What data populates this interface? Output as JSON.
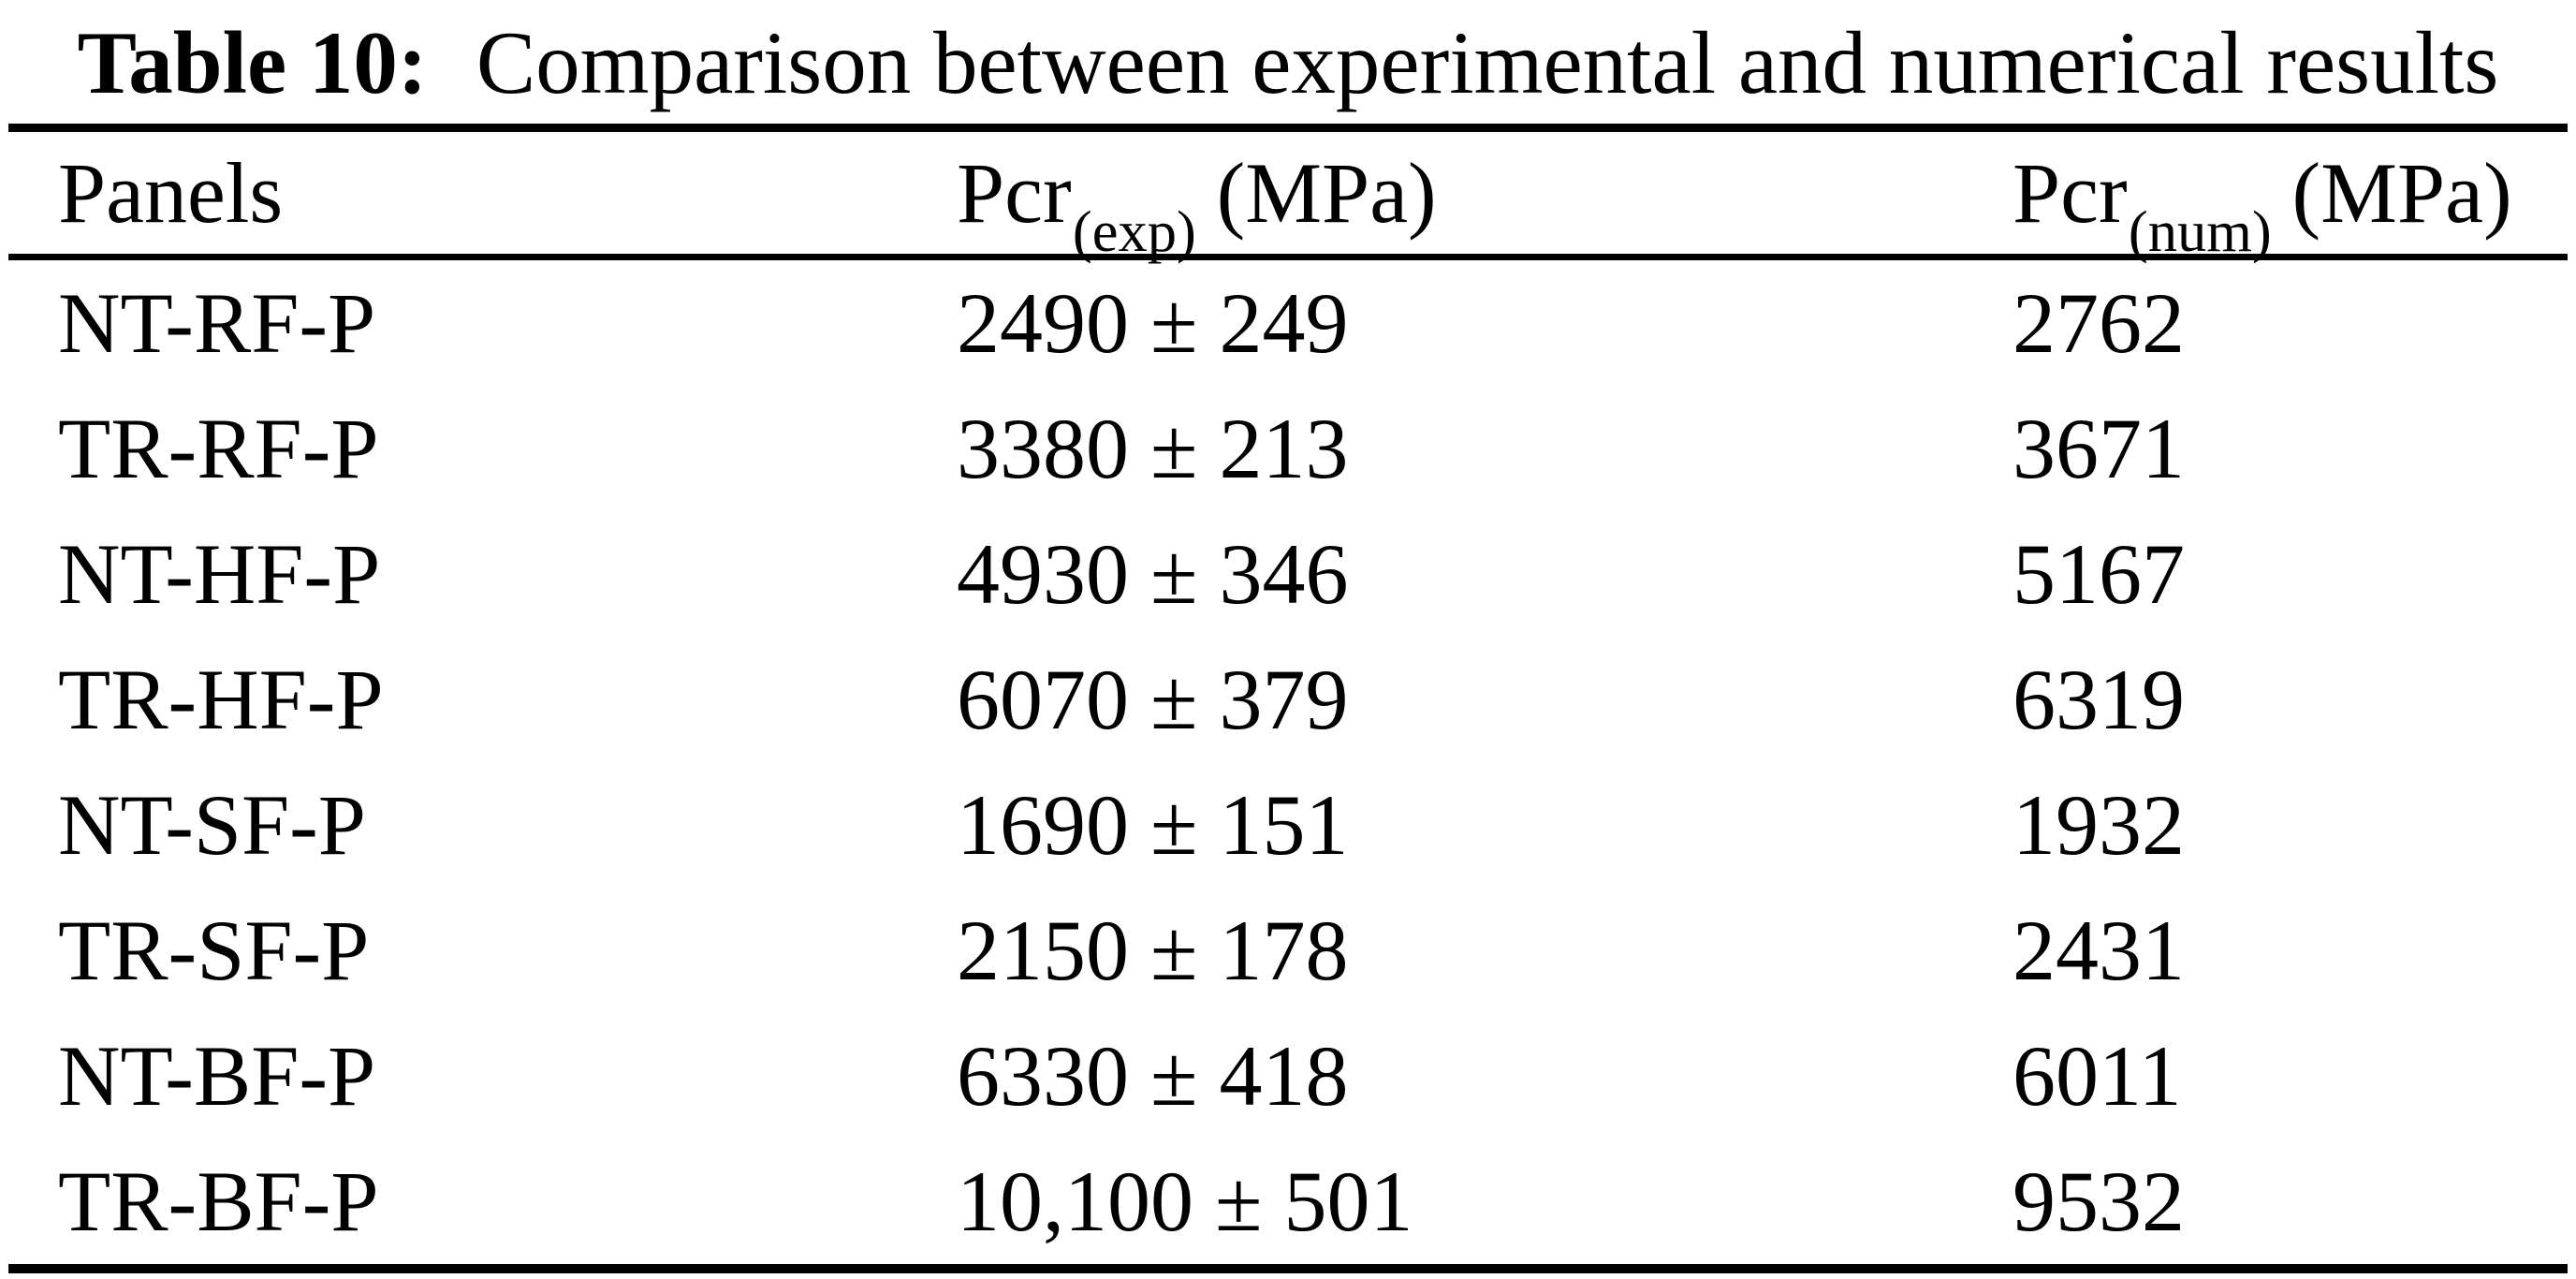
{
  "page": {
    "background_color": "#ffffff",
    "text_color": "#000000"
  },
  "caption": {
    "label": "Table 10:",
    "text": "Comparison between experimental and numerical results"
  },
  "table": {
    "headers": {
      "panels": "Panels",
      "exp_base": "Pcr",
      "exp_sub": "(exp)",
      "exp_unit": " (MPa)",
      "num_base": "Pcr",
      "num_sub": "(num)",
      "num_unit": " (MPa)"
    },
    "rows": [
      {
        "panel": "NT-RF-P",
        "exp": "2490 ± 249",
        "num": "2762"
      },
      {
        "panel": "TR-RF-P",
        "exp": "3380 ± 213",
        "num": "3671"
      },
      {
        "panel": "NT-HF-P",
        "exp": "4930 ± 346",
        "num": "5167"
      },
      {
        "panel": "TR-HF-P",
        "exp": "6070 ± 379",
        "num": "6319"
      },
      {
        "panel": "NT-SF-P",
        "exp": "1690 ± 151",
        "num": "1932"
      },
      {
        "panel": "TR-SF-P",
        "exp": "2150 ± 178",
        "num": "2431"
      },
      {
        "panel": "NT-BF-P",
        "exp": "6330 ± 418",
        "num": "6011"
      },
      {
        "panel": "TR-BF-P",
        "exp": "10,100 ± 501",
        "num": "9532"
      }
    ]
  }
}
